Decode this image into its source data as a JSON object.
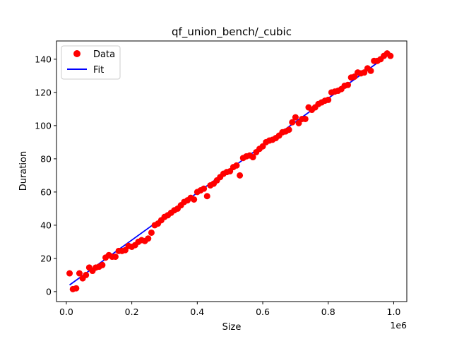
{
  "chart_data": {
    "type": "scatter",
    "title": "qf_union_bench/_cubic",
    "xlabel": "Size",
    "ylabel": "Duration",
    "x_offset_text": "1e6",
    "xlim": [
      -30000,
      1040000
    ],
    "ylim": [
      -6,
      151
    ],
    "x_ticks": [
      0,
      200000,
      400000,
      600000,
      800000,
      1000000
    ],
    "x_tick_labels": [
      "0.0",
      "0.2",
      "0.4",
      "0.6",
      "0.8",
      "1.0"
    ],
    "y_ticks": [
      0,
      20,
      40,
      60,
      80,
      100,
      120,
      140
    ],
    "y_tick_labels": [
      "0",
      "20",
      "40",
      "60",
      "80",
      "100",
      "120",
      "140"
    ],
    "grid": false,
    "legend": {
      "position": "top-left",
      "entries": [
        {
          "label": "Data",
          "marker": "circle",
          "color": "#ff0000"
        },
        {
          "label": "Fit",
          "marker": "line",
          "color": "#0000ff"
        }
      ]
    },
    "series": [
      {
        "name": "Data",
        "kind": "scatter",
        "color": "#ff0000",
        "x": [
          10000,
          20000,
          30000,
          40000,
          50000,
          60000,
          70000,
          80000,
          90000,
          100000,
          110000,
          120000,
          130000,
          140000,
          150000,
          160000,
          170000,
          180000,
          190000,
          200000,
          210000,
          220000,
          230000,
          240000,
          250000,
          260000,
          270000,
          280000,
          290000,
          300000,
          310000,
          320000,
          330000,
          340000,
          350000,
          360000,
          370000,
          380000,
          390000,
          400000,
          410000,
          420000,
          430000,
          440000,
          450000,
          460000,
          470000,
          480000,
          490000,
          500000,
          510000,
          520000,
          530000,
          540000,
          550000,
          560000,
          570000,
          580000,
          590000,
          600000,
          610000,
          620000,
          630000,
          640000,
          650000,
          660000,
          670000,
          680000,
          690000,
          700000,
          710000,
          720000,
          730000,
          740000,
          750000,
          760000,
          770000,
          780000,
          790000,
          800000,
          810000,
          820000,
          830000,
          840000,
          850000,
          860000,
          870000,
          880000,
          890000,
          900000,
          910000,
          920000,
          930000,
          940000,
          950000,
          960000,
          970000,
          980000,
          990000
        ],
        "y": [
          11,
          1.5,
          2,
          11,
          8,
          10,
          14.5,
          12.5,
          14.5,
          15,
          16,
          20.5,
          22,
          21,
          21,
          24.5,
          24.5,
          25,
          27.5,
          27,
          28,
          30,
          31,
          30.5,
          32,
          35.5,
          40,
          41,
          43,
          45,
          46,
          47.5,
          49,
          50,
          52,
          54,
          55,
          56.5,
          55.5,
          60,
          61,
          62,
          57.5,
          64,
          65,
          67,
          69,
          71,
          72,
          72.5,
          75,
          76,
          70,
          80.5,
          81.5,
          82,
          81,
          84,
          86,
          87.5,
          90,
          91,
          91.5,
          92.5,
          94,
          96,
          96.5,
          97.5,
          102,
          105,
          101.5,
          104,
          104,
          111,
          109.5,
          111,
          113,
          114,
          115,
          115.5,
          120,
          120.5,
          121,
          122,
          124,
          124.5,
          129,
          129.5,
          132,
          131.5,
          132,
          134.5,
          133,
          139,
          139,
          140,
          142,
          143.5,
          142
        ]
      },
      {
        "name": "Fit",
        "kind": "line",
        "color": "#0000ff",
        "x": [
          10000,
          990000
        ],
        "y": [
          4,
          143.5
        ]
      }
    ]
  }
}
